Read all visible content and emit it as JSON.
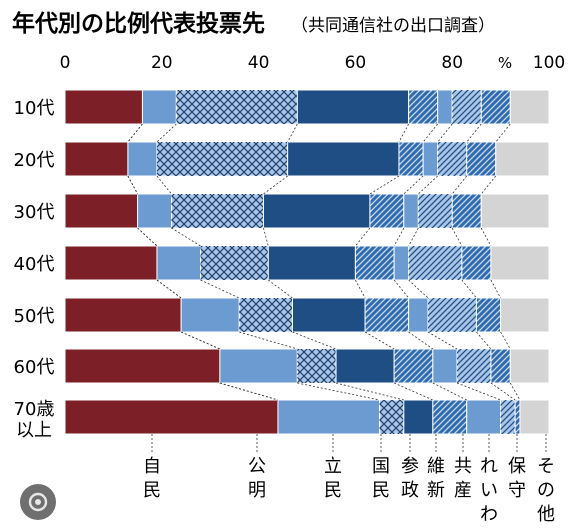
{
  "chart_data": {
    "type": "bar",
    "stacked": true,
    "orientation": "horizontal",
    "title": "年代別の比例代表投票先",
    "subtitle": "（共同通信社の出口調査）",
    "unit_label": "%",
    "xlim": [
      0,
      100
    ],
    "x_ticks": [
      "0",
      "20",
      "40",
      "60",
      "80",
      "100"
    ],
    "categories": [
      "10代",
      "20代",
      "30代",
      "40代",
      "50代",
      "60代",
      "70歳以上"
    ],
    "series": [
      {
        "name": "自民",
        "label_lines": [
          "自",
          "民"
        ],
        "color": "#7d1f27",
        "pattern": "none",
        "values": [
          16,
          13,
          15,
          19,
          24,
          32,
          44
        ]
      },
      {
        "name": "公明",
        "label_lines": [
          "公",
          "明"
        ],
        "color": "#7d1f27",
        "pattern": "none",
        "values": [
          0,
          0,
          0,
          0,
          0,
          0,
          0
        ]
      },
      {
        "name": "立民",
        "label_lines": [
          "立",
          "民"
        ],
        "color": "#6b9bd1",
        "pattern": "none",
        "values": [
          7,
          6,
          7,
          9,
          12,
          16,
          21
        ]
      },
      {
        "name": "国民",
        "label_lines": [
          "国",
          "民"
        ],
        "color": "#a9c6e8",
        "pattern": "crosshatch",
        "values": [
          25,
          27,
          19,
          14,
          11,
          8,
          5
        ]
      },
      {
        "name": "参政",
        "label_lines": [
          "参",
          "政"
        ],
        "color": "#1f4e85",
        "pattern": "none",
        "values": [
          23,
          23,
          22,
          18,
          15,
          12,
          6
        ]
      },
      {
        "name": "維新",
        "label_lines": [
          "維",
          "新"
        ],
        "color": "#2f6bb0",
        "pattern": "diagonal",
        "values": [
          6,
          5,
          7,
          8,
          9,
          8,
          7
        ]
      },
      {
        "name": "共産",
        "label_lines": [
          "共",
          "産"
        ],
        "color": "#6b9bd1",
        "pattern": "none",
        "values": [
          3,
          3,
          3,
          3,
          4,
          5,
          7
        ]
      },
      {
        "name": "れいわ",
        "label_lines": [
          "れ",
          "い",
          "わ"
        ],
        "color": "#a9c6e8",
        "pattern": "diagonal",
        "values": [
          6,
          6,
          7,
          11,
          10,
          7,
          3
        ]
      },
      {
        "name": "保守",
        "label_lines": [
          "保",
          "守"
        ],
        "color": "#2f6bb0",
        "pattern": "diagonal",
        "values": [
          6,
          6,
          6,
          6,
          5,
          4,
          1
        ]
      },
      {
        "name": "その他",
        "label_lines": [
          "そ",
          "の",
          "他"
        ],
        "color": "#d4d4d4",
        "pattern": "none",
        "values": [
          8,
          11,
          14,
          12,
          10,
          8,
          6
        ]
      }
    ],
    "lower_segment_widths_note": "",
    "grid": false,
    "legend": "below"
  }
}
